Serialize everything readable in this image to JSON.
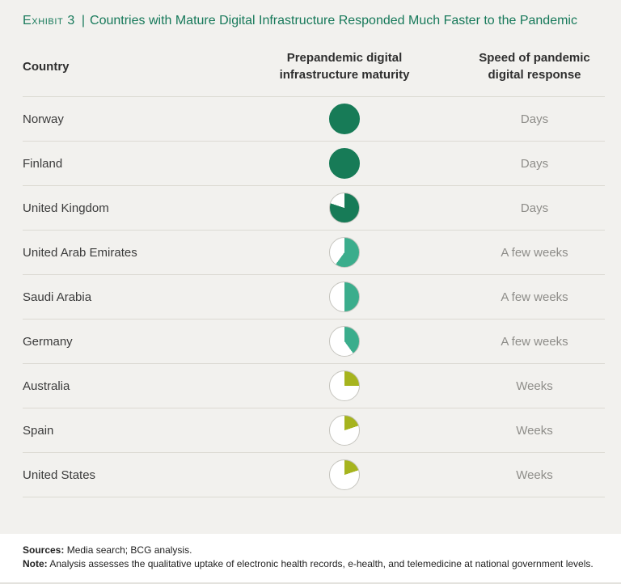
{
  "exhibit": {
    "eyebrow": "Exhibit 3",
    "divider": "|",
    "title": "Countries with Mature Digital Infrastructure Responded Much Faster to the Pandemic"
  },
  "table_headers": {
    "country": "Country",
    "maturity": "Prepandemic digital infrastructure maturity",
    "response": "Speed of pandemic digital response"
  },
  "chart_data": {
    "type": "table",
    "title": "Exhibit 3 | Countries with Mature Digital Infrastructure Responded Much Faster to the Pandemic",
    "columns": [
      "Country",
      "Prepandemic digital infrastructure maturity",
      "Speed of pandemic digital response"
    ],
    "maturity_encoding": "harvey-ball pie: fraction of circle filled clockwise from top; color indicates tier",
    "rows": [
      {
        "country": "Norway",
        "maturity_pct": 100,
        "tier": "high",
        "response": "Days"
      },
      {
        "country": "Finland",
        "maturity_pct": 100,
        "tier": "high",
        "response": "Days"
      },
      {
        "country": "United Kingdom",
        "maturity_pct": 80,
        "tier": "high",
        "response": "Days"
      },
      {
        "country": "United Arab Emirates",
        "maturity_pct": 60,
        "tier": "medium",
        "response": "A few weeks"
      },
      {
        "country": "Saudi Arabia",
        "maturity_pct": 50,
        "tier": "medium",
        "response": "A few weeks"
      },
      {
        "country": "Germany",
        "maturity_pct": 40,
        "tier": "medium",
        "response": "A few weeks"
      },
      {
        "country": "Australia",
        "maturity_pct": 25,
        "tier": "low",
        "response": "Weeks"
      },
      {
        "country": "Spain",
        "maturity_pct": 20,
        "tier": "low",
        "response": "Weeks"
      },
      {
        "country": "United States",
        "maturity_pct": 20,
        "tier": "low",
        "response": "Weeks"
      }
    ],
    "tier_colors": {
      "high": "#177b57",
      "medium": "#3bad8c",
      "low": "#a6b41e"
    },
    "empty_color": "#ffffff"
  },
  "footer": {
    "sources_label": "Sources:",
    "sources_text": "Media search; BCG analysis.",
    "note_label": "Note:",
    "note_text": "Analysis assesses the qualitative uptake of electronic health records, e-health, and telemedicine at national government levels."
  },
  "colors": {
    "title_green": "#17795a",
    "background": "#f2f1ee",
    "row_line": "#dcdad3",
    "text_dark": "#3b3b3b",
    "text_muted": "#8e8d89",
    "footer_bg": "#ffffff"
  }
}
